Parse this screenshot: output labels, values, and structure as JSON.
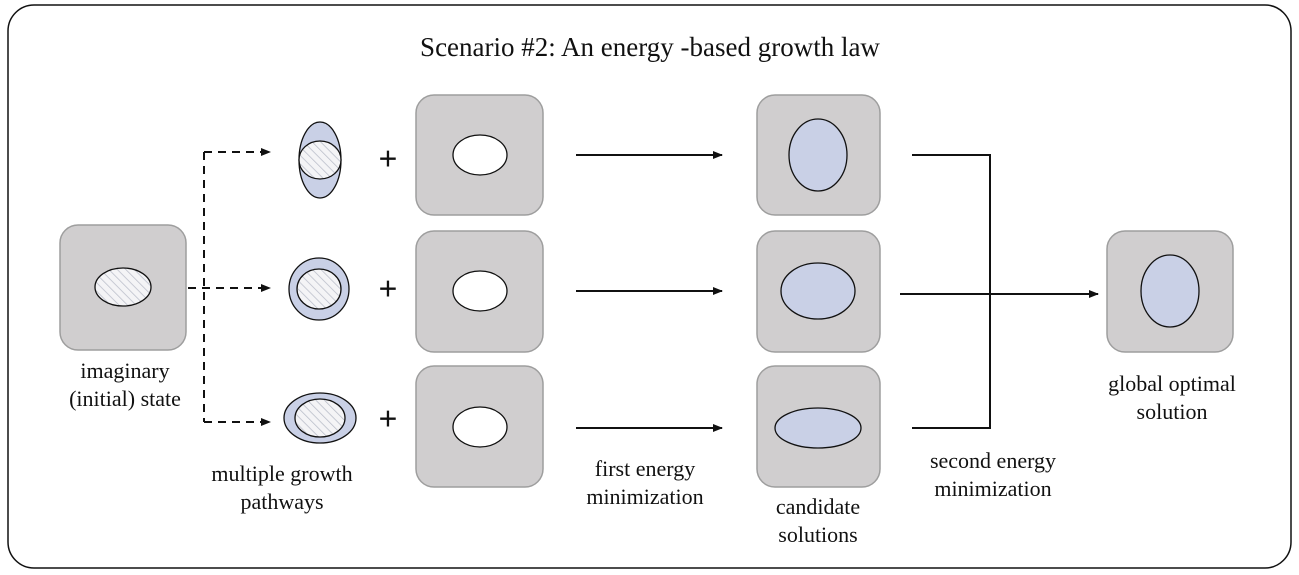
{
  "title": "Scenario #2: An energy -based growth law",
  "initial_label": [
    "imaginary",
    "(initial) state"
  ],
  "pathways_label": [
    "multiple growth",
    "pathways"
  ],
  "plus": [
    "+",
    "+",
    "+"
  ],
  "first_label": [
    "first energy",
    "minimization"
  ],
  "candidates_label": [
    "candidate",
    "solutions"
  ],
  "second_label": [
    "second energy",
    "minimization"
  ],
  "final_label": [
    "global optimal",
    "solution"
  ]
}
